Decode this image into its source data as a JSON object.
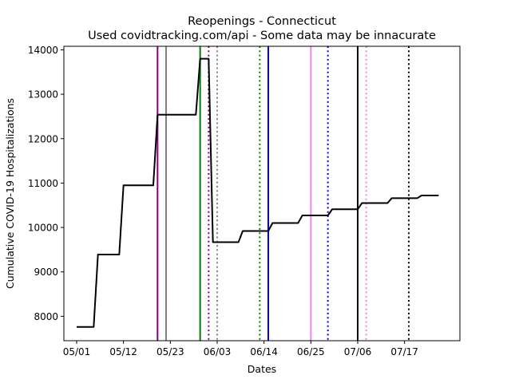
{
  "chart_data": {
    "type": "line",
    "title": "Reopenings - Connecticut",
    "subtitle": "Used covidtracking.com/api - Some data may be innacurate",
    "xlabel": "Dates",
    "ylabel": "Cumulative COVID-19 Hospitalizations",
    "xlim": [
      "2020-04-28",
      "2020-07-30"
    ],
    "ylim": [
      7450,
      14080
    ],
    "x_ticks": [
      "05/01",
      "05/12",
      "05/23",
      "06/03",
      "06/14",
      "06/25",
      "07/06",
      "07/17"
    ],
    "y_ticks": [
      8000,
      9000,
      10000,
      11000,
      12000,
      13000,
      14000
    ],
    "grid": false,
    "legend": "none",
    "series": [
      {
        "color": "#000000",
        "points": [
          {
            "x": "2020-05-01",
            "y": 7760
          },
          {
            "x": "2020-05-05",
            "y": 7760
          },
          {
            "x": "2020-05-06",
            "y": 9390
          },
          {
            "x": "2020-05-11",
            "y": 9390
          },
          {
            "x": "2020-05-12",
            "y": 10950
          },
          {
            "x": "2020-05-19",
            "y": 10950
          },
          {
            "x": "2020-05-20",
            "y": 12540
          },
          {
            "x": "2020-05-29",
            "y": 12540
          },
          {
            "x": "2020-05-30",
            "y": 13800
          },
          {
            "x": "2020-06-01",
            "y": 13800
          },
          {
            "x": "2020-06-02",
            "y": 9670
          },
          {
            "x": "2020-06-08",
            "y": 9670
          },
          {
            "x": "2020-06-09",
            "y": 9920
          },
          {
            "x": "2020-06-15",
            "y": 9920
          },
          {
            "x": "2020-06-16",
            "y": 10100
          },
          {
            "x": "2020-06-22",
            "y": 10100
          },
          {
            "x": "2020-06-23",
            "y": 10270
          },
          {
            "x": "2020-06-29",
            "y": 10270
          },
          {
            "x": "2020-06-30",
            "y": 10410
          },
          {
            "x": "2020-07-06",
            "y": 10410
          },
          {
            "x": "2020-07-07",
            "y": 10550
          },
          {
            "x": "2020-07-13",
            "y": 10550
          },
          {
            "x": "2020-07-14",
            "y": 10660
          },
          {
            "x": "2020-07-20",
            "y": 10660
          },
          {
            "x": "2020-07-21",
            "y": 10720
          },
          {
            "x": "2020-07-25",
            "y": 10720
          }
        ]
      }
    ],
    "vertical_lines": [
      {
        "x": "2020-05-20",
        "color": "#800080",
        "style": "solid"
      },
      {
        "x": "2020-05-22",
        "color": "#808080",
        "style": "solid"
      },
      {
        "x": "2020-05-30",
        "color": "#008000",
        "style": "solid"
      },
      {
        "x": "2020-06-01",
        "color": "#800080",
        "style": "dotted"
      },
      {
        "x": "2020-06-03",
        "color": "#808080",
        "style": "dotted"
      },
      {
        "x": "2020-06-13",
        "color": "#008000",
        "style": "dotted"
      },
      {
        "x": "2020-06-15",
        "color": "#0000ff",
        "style": "solid"
      },
      {
        "x": "2020-06-25",
        "color": "#ee82ee",
        "style": "solid"
      },
      {
        "x": "2020-06-29",
        "color": "#0000ff",
        "style": "dotted"
      },
      {
        "x": "2020-07-06",
        "color": "#000000",
        "style": "solid"
      },
      {
        "x": "2020-07-08",
        "color": "#ee82ee",
        "style": "dotted"
      },
      {
        "x": "2020-07-18",
        "color": "#000000",
        "style": "dotted"
      }
    ]
  }
}
